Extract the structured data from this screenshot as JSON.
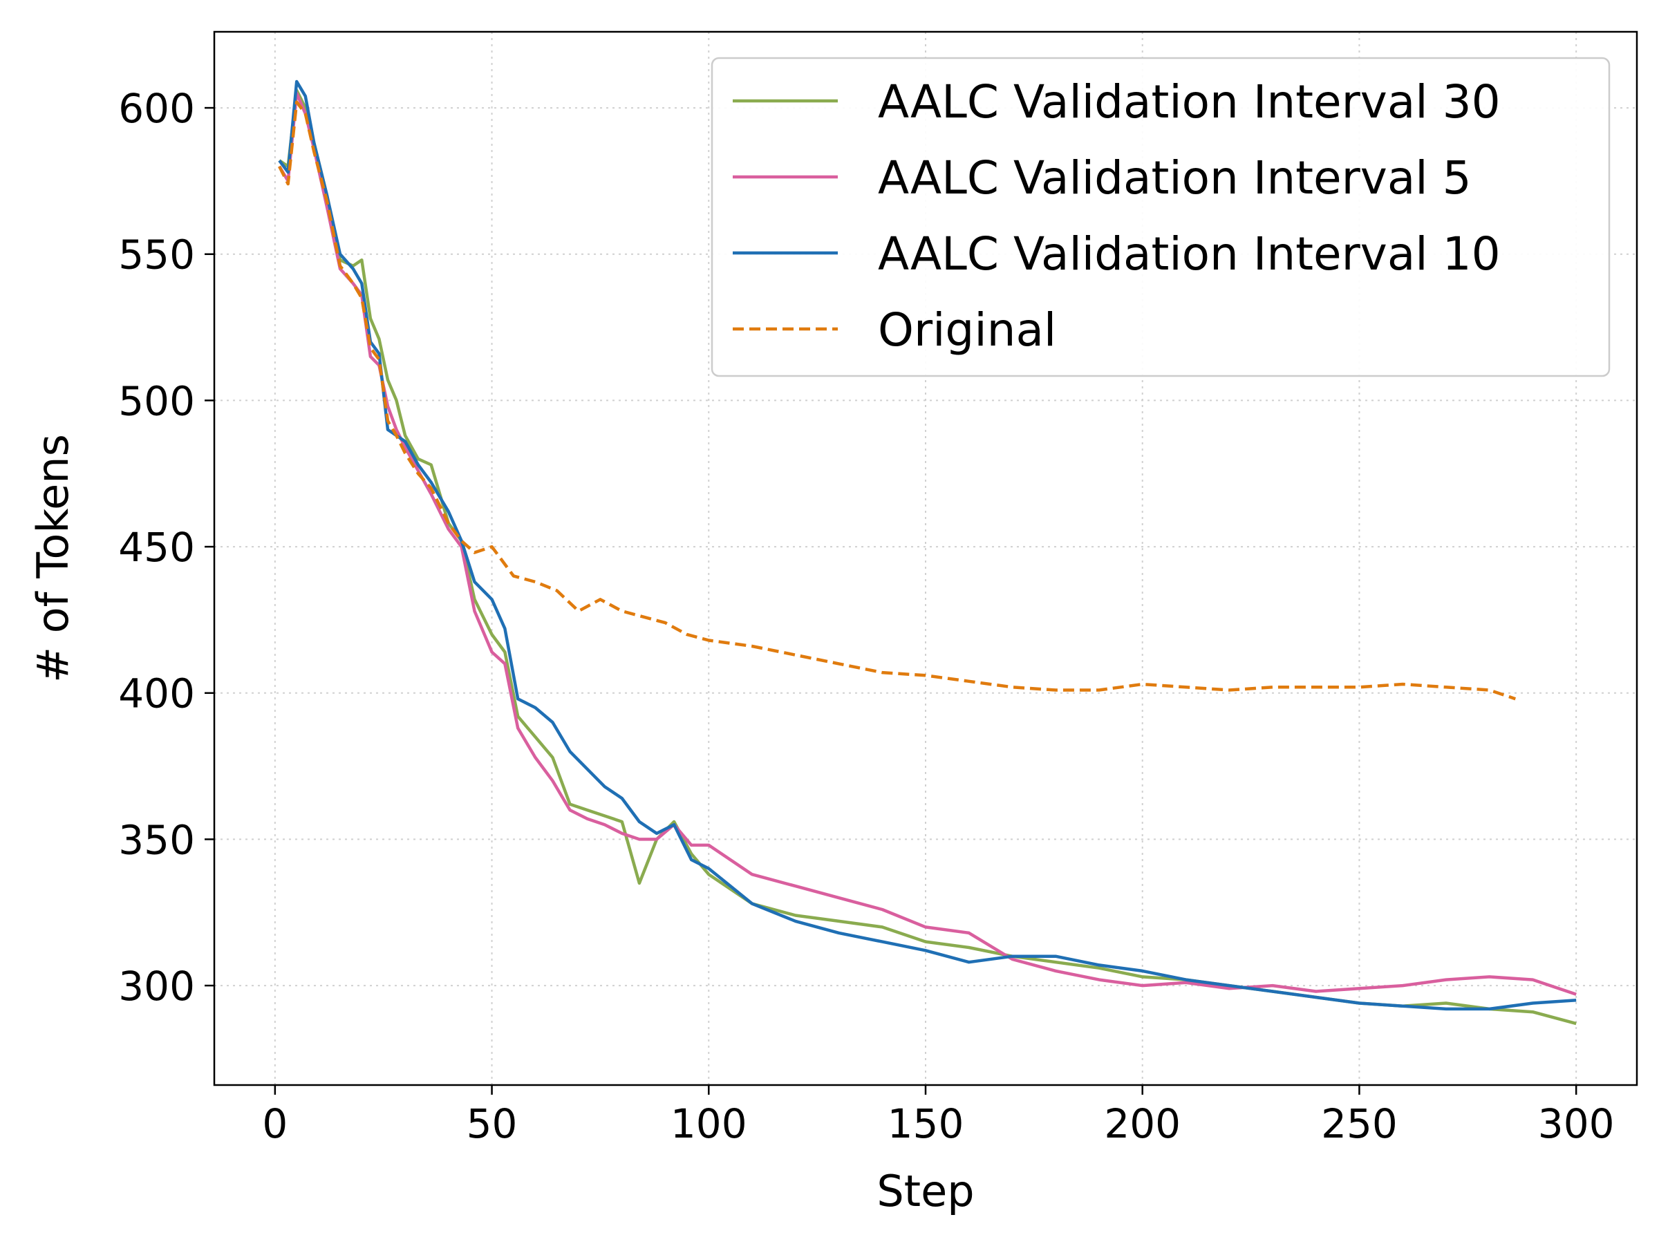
{
  "chart_data": {
    "type": "line",
    "title": "",
    "xlabel": "Step",
    "ylabel": "# of Tokens",
    "xlim": [
      -14,
      314
    ],
    "ylim": [
      266,
      626
    ],
    "xticks": [
      0,
      50,
      100,
      150,
      200,
      250,
      300
    ],
    "yticks": [
      300,
      350,
      400,
      450,
      500,
      550,
      600
    ],
    "grid": true,
    "legend_position": "top-right",
    "series": [
      {
        "name": "AALC Validation Interval 30",
        "color": "#8aab4f",
        "dash": "solid",
        "x": [
          1,
          3,
          5,
          7,
          9,
          12,
          15,
          18,
          20,
          22,
          24,
          26,
          28,
          30,
          33,
          36,
          40,
          43,
          46,
          50,
          53,
          56,
          60,
          64,
          68,
          72,
          76,
          80,
          84,
          88,
          92,
          96,
          100,
          110,
          120,
          130,
          140,
          150,
          160,
          170,
          180,
          190,
          200,
          210,
          220,
          230,
          240,
          250,
          260,
          270,
          280,
          290,
          300
        ],
        "y": [
          582,
          580,
          606,
          600,
          588,
          570,
          548,
          546,
          548,
          528,
          521,
          507,
          500,
          488,
          480,
          478,
          458,
          452,
          432,
          420,
          414,
          392,
          385,
          378,
          362,
          360,
          358,
          356,
          335,
          350,
          356,
          345,
          338,
          328,
          324,
          322,
          320,
          315,
          313,
          310,
          308,
          306,
          303,
          302,
          300,
          298,
          296,
          294,
          293,
          294,
          292,
          291,
          287
        ]
      },
      {
        "name": "AALC Validation Interval 5",
        "color": "#d95f9e",
        "dash": "solid",
        "x": [
          1,
          3,
          5,
          7,
          9,
          12,
          15,
          18,
          20,
          22,
          24,
          26,
          28,
          30,
          33,
          36,
          40,
          43,
          46,
          50,
          53,
          56,
          60,
          64,
          68,
          72,
          76,
          80,
          84,
          88,
          92,
          96,
          100,
          110,
          120,
          130,
          140,
          150,
          160,
          170,
          180,
          190,
          200,
          210,
          220,
          230,
          240,
          250,
          260,
          270,
          280,
          290,
          300
        ],
        "y": [
          580,
          575,
          605,
          598,
          586,
          566,
          545,
          540,
          536,
          515,
          512,
          498,
          490,
          484,
          476,
          468,
          456,
          450,
          428,
          414,
          410,
          388,
          378,
          370,
          360,
          357,
          355,
          352,
          350,
          350,
          355,
          348,
          348,
          338,
          334,
          330,
          326,
          320,
          318,
          309,
          305,
          302,
          300,
          301,
          299,
          300,
          298,
          299,
          300,
          302,
          303,
          302,
          297
        ]
      },
      {
        "name": "AALC Validation Interval 10",
        "color": "#1f6fb4",
        "dash": "solid",
        "x": [
          1,
          3,
          5,
          7,
          9,
          12,
          15,
          18,
          20,
          22,
          24,
          26,
          28,
          30,
          33,
          36,
          40,
          43,
          46,
          50,
          53,
          56,
          60,
          64,
          68,
          72,
          76,
          80,
          84,
          88,
          92,
          96,
          100,
          110,
          120,
          130,
          140,
          150,
          160,
          170,
          180,
          190,
          200,
          210,
          220,
          230,
          240,
          250,
          260,
          270,
          280,
          290,
          300
        ],
        "y": [
          582,
          578,
          609,
          604,
          588,
          570,
          550,
          545,
          540,
          520,
          516,
          490,
          488,
          486,
          478,
          472,
          462,
          452,
          438,
          432,
          422,
          398,
          395,
          390,
          380,
          374,
          368,
          364,
          356,
          352,
          355,
          343,
          340,
          328,
          322,
          318,
          315,
          312,
          308,
          310,
          310,
          307,
          305,
          302,
          300,
          298,
          296,
          294,
          293,
          292,
          292,
          294,
          295
        ]
      },
      {
        "name": "Original",
        "color": "#e07b0e",
        "dash": "dashed",
        "x": [
          1,
          3,
          5,
          7,
          9,
          12,
          15,
          18,
          20,
          22,
          24,
          26,
          28,
          30,
          33,
          36,
          40,
          43,
          46,
          50,
          55,
          60,
          65,
          70,
          75,
          80,
          85,
          90,
          95,
          100,
          110,
          120,
          130,
          140,
          150,
          160,
          170,
          180,
          190,
          200,
          210,
          220,
          230,
          240,
          250,
          260,
          270,
          280,
          286
        ],
        "y": [
          580,
          574,
          602,
          598,
          585,
          568,
          546,
          540,
          535,
          518,
          514,
          493,
          488,
          482,
          475,
          470,
          458,
          452,
          448,
          450,
          440,
          438,
          435,
          428,
          432,
          428,
          426,
          424,
          420,
          418,
          416,
          413,
          410,
          407,
          406,
          404,
          402,
          401,
          401,
          403,
          402,
          401,
          402,
          402,
          402,
          403,
          402,
          401,
          398
        ]
      }
    ]
  }
}
